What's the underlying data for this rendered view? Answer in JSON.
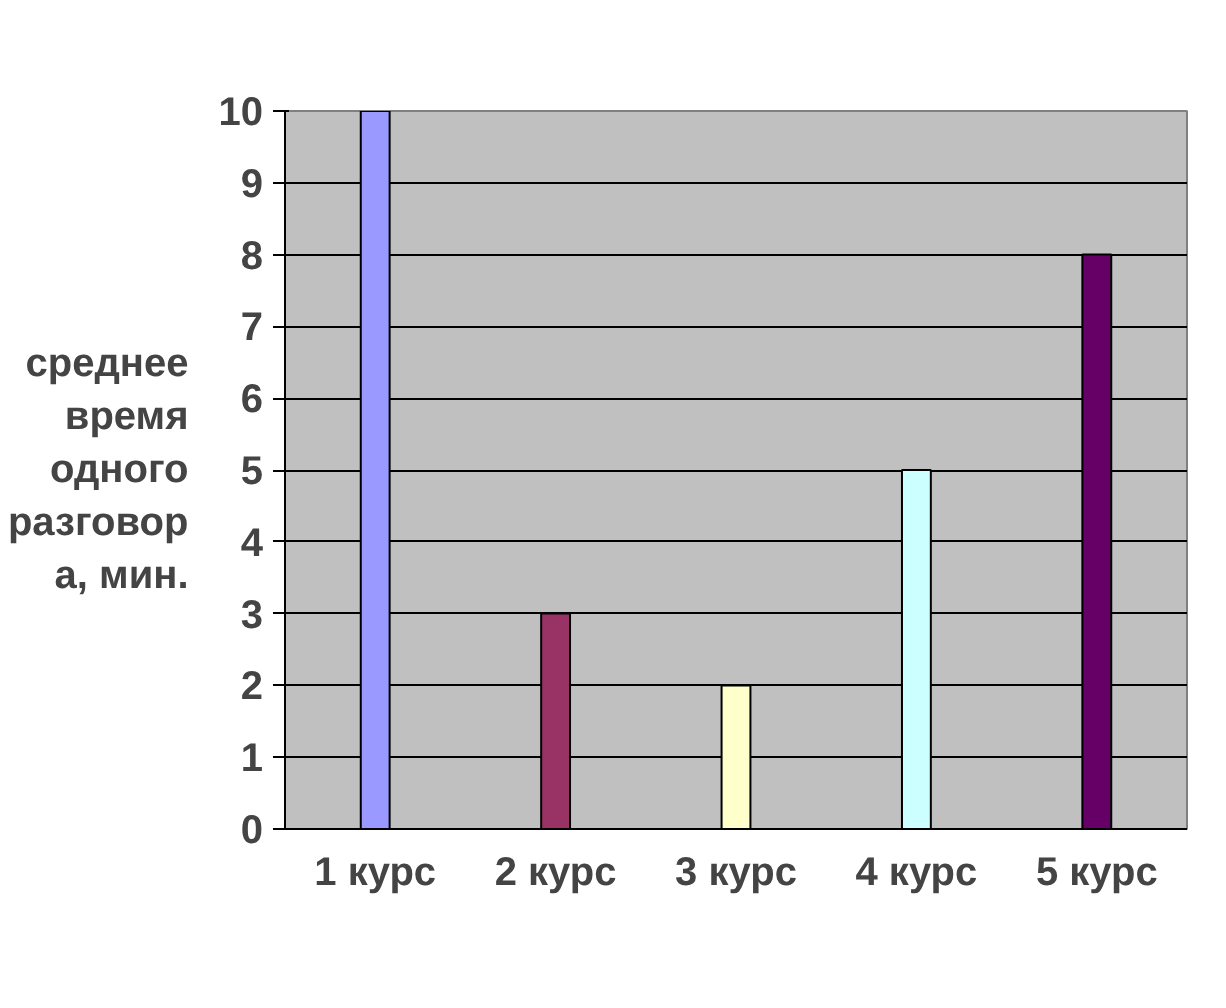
{
  "chart_data": {
    "type": "bar",
    "ylabel": "среднее\nвремя\nодного\nразговор\nа, мин.",
    "categories": [
      "1 курс",
      "2 курс",
      "3 курс",
      "4 курс",
      "5 курс"
    ],
    "values": [
      10,
      3,
      2,
      5,
      8
    ],
    "colors": [
      "#9999ff",
      "#993366",
      "#ffffcc",
      "#ccffff",
      "#660066"
    ],
    "ylim": [
      0,
      10
    ],
    "yticks": [
      0,
      1,
      2,
      3,
      4,
      5,
      6,
      7,
      8,
      9,
      10
    ],
    "grid": "y"
  }
}
